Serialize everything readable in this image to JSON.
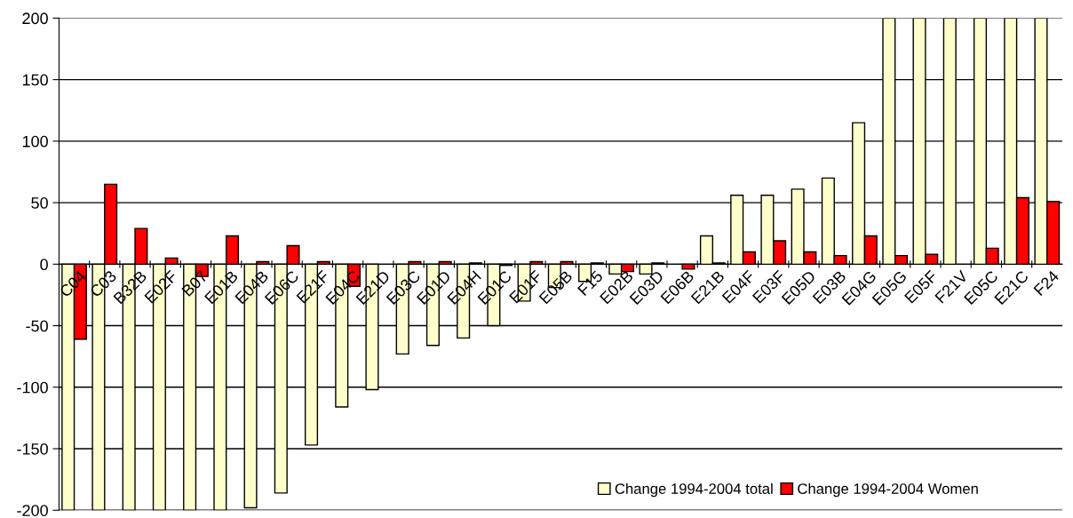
{
  "chart_data": {
    "type": "bar",
    "categories": [
      "C04",
      "C03",
      "B32B",
      "E02F",
      "B07",
      "E01B",
      "E04B",
      "E06C",
      "E21F",
      "E04C",
      "E21D",
      "E03C",
      "E01D",
      "E04H",
      "E01C",
      "E01F",
      "E05B",
      "F15",
      "E02B",
      "E03D",
      "E06B",
      "E21B",
      "E04F",
      "E03F",
      "E05D",
      "E03B",
      "E04G",
      "E05G",
      "E05F",
      "F21V",
      "E05C",
      "E21C",
      "F24"
    ],
    "series": [
      {
        "name": "Change 1994-2004 total",
        "color": "#ffffcc",
        "values": [
          -200,
          -200,
          -200,
          -200,
          -200,
          -200,
          -198,
          -186,
          -147,
          -116,
          -102,
          -73,
          -66,
          -60,
          -50,
          -30,
          -19,
          -14,
          -8,
          -8,
          0,
          23,
          56,
          56,
          61,
          70,
          115,
          200,
          200,
          200,
          200,
          200,
          200
        ]
      },
      {
        "name": "Change 1994-2004 Women",
        "color": "#ff0000",
        "values": [
          -61,
          65,
          29,
          5,
          -10,
          23,
          2,
          15,
          2,
          -18,
          0,
          2,
          2,
          1,
          -1,
          2,
          2,
          1,
          -6,
          1,
          -4,
          1,
          10,
          19,
          10,
          7,
          23,
          7,
          8,
          0,
          13,
          54,
          51
        ]
      }
    ],
    "ylim": [
      -200,
      200
    ],
    "yticks": [
      -200,
      -150,
      -100,
      -50,
      0,
      50,
      100,
      150,
      200
    ],
    "grid": "y",
    "legend": "bottom right"
  }
}
